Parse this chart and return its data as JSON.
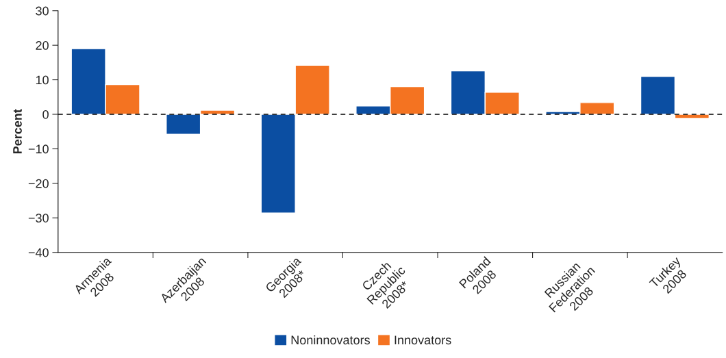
{
  "chart_data": {
    "type": "bar",
    "ylabel": "Percent",
    "categories": [
      "Armenia\n2008",
      "Azerbaijan\n2008",
      "Georgia\n2008*",
      "Czech\nRepublic\n2008*",
      "Poland\n2008",
      "Russian\nFederation\n2008",
      "Turkey\n2008"
    ],
    "series": [
      {
        "name": "Noninnovators",
        "color": "#0b4ea2",
        "values": [
          19,
          -5.8,
          -28.6,
          2.4,
          12.6,
          0.8,
          11
        ]
      },
      {
        "name": "Innovators",
        "color": "#f47321",
        "values": [
          8.6,
          1.2,
          14.2,
          8,
          6.4,
          3.4,
          -1.2
        ]
      }
    ],
    "ylim": [
      -40,
      30
    ],
    "yticks": [
      {
        "value": -40,
        "label": "−40"
      },
      {
        "value": -30,
        "label": "−30"
      },
      {
        "value": -20,
        "label": "−20"
      },
      {
        "value": -10,
        "label": "−10"
      },
      0,
      10,
      20,
      30
    ],
    "ref_lines": [
      {
        "axis": "y",
        "value": 0,
        "color": "#000000",
        "line_style": "dashed"
      }
    ],
    "grid": false,
    "legend": "bottom"
  }
}
